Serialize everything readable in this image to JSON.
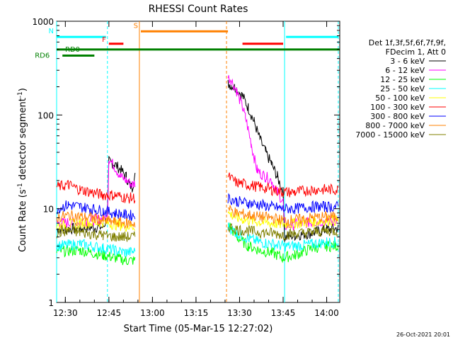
{
  "chart_data": {
    "type": "line",
    "title": "RHESSI Count Rates",
    "xlabel": "Start Time (05-Mar-15 12:27:02)",
    "ylabel_main": "Count Rate (s",
    "ylabel_sup1": "-1",
    "ylabel_mid": " detector segment",
    "ylabel_sup2": "-1",
    "ylabel_end": ")",
    "x_unit": "minutes after 12:27:02",
    "xlim": [
      0,
      97.5
    ],
    "yscale": "log",
    "ylim": [
      1,
      1000
    ],
    "x_ticks": [
      {
        "label": "12:30",
        "value": 3
      },
      {
        "label": "12:45",
        "value": 18
      },
      {
        "label": "13:00",
        "value": 33
      },
      {
        "label": "13:15",
        "value": 48
      },
      {
        "label": "13:30",
        "value": 63
      },
      {
        "label": "13:45",
        "value": 78
      },
      {
        "label": "14:00",
        "value": 93
      }
    ],
    "y_ticks": [
      {
        "label": "1",
        "value": 1
      },
      {
        "label": "10",
        "value": 10
      },
      {
        "label": "100",
        "value": 100
      },
      {
        "label": "1000",
        "value": 1000
      }
    ],
    "grid": false,
    "legend_header": [
      "Det 1f,3f,5f,6f,7f,9f,",
      "FDecim 1, Att 0"
    ],
    "legend_position": "right",
    "series": [
      {
        "name": "3 - 6 keV",
        "color": "#000000",
        "points": [
          [
            0,
            6.0
          ],
          [
            8,
            6.2
          ],
          [
            16,
            6.4
          ],
          [
            17.5,
            8
          ],
          [
            18,
            32
          ],
          [
            20,
            30
          ],
          [
            22,
            26
          ],
          [
            24,
            22
          ],
          [
            25,
            18
          ],
          [
            26,
            17
          ],
          [
            27,
            22
          ],
          [
            59,
            215
          ],
          [
            60,
            210
          ],
          [
            62,
            190
          ],
          [
            64,
            160
          ],
          [
            66,
            120
          ],
          [
            68,
            85
          ],
          [
            70,
            55
          ],
          [
            72,
            40
          ],
          [
            74,
            30
          ],
          [
            76,
            22
          ],
          [
            78,
            15
          ],
          [
            78.5,
            5.0
          ],
          [
            82,
            5.2
          ],
          [
            88,
            5.5
          ],
          [
            93,
            6.0
          ],
          [
            97,
            6.2
          ]
        ]
      },
      {
        "name": "6 - 12 keV",
        "color": "#ff00ff",
        "points": [
          [
            0,
            7.0
          ],
          [
            8,
            7.2
          ],
          [
            17.5,
            8
          ],
          [
            18,
            34
          ],
          [
            20,
            28
          ],
          [
            22,
            22
          ],
          [
            24,
            20
          ],
          [
            26,
            18
          ],
          [
            27,
            19
          ],
          [
            59,
            250
          ],
          [
            60,
            240
          ],
          [
            62,
            180
          ],
          [
            64,
            120
          ],
          [
            65,
            95
          ],
          [
            66,
            70
          ],
          [
            67,
            50
          ],
          [
            68,
            35
          ],
          [
            69,
            26
          ],
          [
            70,
            24
          ],
          [
            72,
            22
          ],
          [
            74,
            20
          ],
          [
            76,
            15
          ],
          [
            78,
            12
          ],
          [
            78.5,
            6.5
          ],
          [
            85,
            7
          ],
          [
            93,
            7.5
          ],
          [
            97,
            7.5
          ]
        ]
      },
      {
        "name": "12 - 25 keV",
        "color": "#00ff00",
        "points": [
          [
            0,
            3.5
          ],
          [
            8,
            3.6
          ],
          [
            16,
            3.2
          ],
          [
            20,
            3.0
          ],
          [
            24,
            2.8
          ],
          [
            27,
            2.8
          ],
          [
            59,
            7.0
          ],
          [
            62,
            5.0
          ],
          [
            66,
            4.0
          ],
          [
            70,
            3.6
          ],
          [
            74,
            3.4
          ],
          [
            78,
            3.0
          ],
          [
            82,
            3.2
          ],
          [
            88,
            3.8
          ],
          [
            93,
            4.0
          ],
          [
            97,
            4.0
          ]
        ]
      },
      {
        "name": "25 - 50 keV",
        "color": "#00ffff",
        "points": [
          [
            0,
            4.0
          ],
          [
            8,
            4.2
          ],
          [
            16,
            3.8
          ],
          [
            20,
            3.6
          ],
          [
            24,
            3.4
          ],
          [
            27,
            3.5
          ],
          [
            59,
            6.5
          ],
          [
            62,
            5.5
          ],
          [
            66,
            4.8
          ],
          [
            70,
            4.4
          ],
          [
            74,
            4.2
          ],
          [
            78,
            4.0
          ],
          [
            82,
            4.0
          ],
          [
            88,
            4.2
          ],
          [
            93,
            4.4
          ],
          [
            97,
            4.4
          ]
        ]
      },
      {
        "name": "50 - 100 keV",
        "color": "#ffff00",
        "points": [
          [
            0,
            6.5
          ],
          [
            8,
            7.0
          ],
          [
            16,
            7.2
          ],
          [
            20,
            6.8
          ],
          [
            24,
            6.5
          ],
          [
            27,
            6.5
          ],
          [
            59,
            9.0
          ],
          [
            62,
            8.0
          ],
          [
            66,
            7.5
          ],
          [
            70,
            7.2
          ],
          [
            74,
            7.0
          ],
          [
            78,
            6.8
          ],
          [
            82,
            7.0
          ],
          [
            88,
            7.2
          ],
          [
            93,
            7.5
          ],
          [
            97,
            7.5
          ]
        ]
      },
      {
        "name": "100 - 300 keV",
        "color": "#ff0000",
        "points": [
          [
            0,
            17
          ],
          [
            4,
            18
          ],
          [
            8,
            16
          ],
          [
            12,
            15
          ],
          [
            16,
            14
          ],
          [
            20,
            14
          ],
          [
            24,
            13
          ],
          [
            27,
            13
          ],
          [
            59,
            22
          ],
          [
            62,
            19
          ],
          [
            66,
            18
          ],
          [
            70,
            17
          ],
          [
            74,
            16
          ],
          [
            78,
            15
          ],
          [
            82,
            15
          ],
          [
            88,
            16
          ],
          [
            93,
            16
          ],
          [
            97,
            16
          ]
        ]
      },
      {
        "name": "300 - 800 keV",
        "color": "#0000ff",
        "points": [
          [
            0,
            10
          ],
          [
            4,
            11
          ],
          [
            8,
            10.5
          ],
          [
            12,
            10
          ],
          [
            16,
            9.5
          ],
          [
            20,
            9
          ],
          [
            24,
            8.5
          ],
          [
            27,
            8.5
          ],
          [
            59,
            13
          ],
          [
            62,
            12
          ],
          [
            66,
            11.5
          ],
          [
            70,
            11
          ],
          [
            74,
            10.5
          ],
          [
            78,
            10
          ],
          [
            82,
            10
          ],
          [
            88,
            10.5
          ],
          [
            93,
            10.5
          ],
          [
            97,
            10.5
          ]
        ]
      },
      {
        "name": "800 - 7000 keV",
        "color": "#ff8000",
        "points": [
          [
            0,
            8.0
          ],
          [
            4,
            8.5
          ],
          [
            8,
            8.2
          ],
          [
            12,
            8.0
          ],
          [
            16,
            7.5
          ],
          [
            20,
            7.2
          ],
          [
            24,
            7.0
          ],
          [
            27,
            7.0
          ],
          [
            59,
            10
          ],
          [
            62,
            9
          ],
          [
            66,
            8.6
          ],
          [
            70,
            8.2
          ],
          [
            74,
            8.0
          ],
          [
            78,
            7.5
          ],
          [
            82,
            7.6
          ],
          [
            88,
            8.0
          ],
          [
            93,
            8.2
          ],
          [
            97,
            8.2
          ]
        ]
      },
      {
        "name": "7000 - 15000 keV",
        "color": "#808000",
        "points": [
          [
            0,
            5.5
          ],
          [
            4,
            5.8
          ],
          [
            8,
            5.6
          ],
          [
            12,
            5.4
          ],
          [
            16,
            5.2
          ],
          [
            20,
            5.0
          ],
          [
            24,
            5.0
          ],
          [
            27,
            5.0
          ],
          [
            59,
            6.5
          ],
          [
            62,
            6.0
          ],
          [
            66,
            5.8
          ],
          [
            70,
            5.6
          ],
          [
            74,
            5.5
          ],
          [
            78,
            5.3
          ],
          [
            82,
            5.4
          ],
          [
            88,
            5.6
          ],
          [
            93,
            5.8
          ],
          [
            97,
            5.8
          ]
        ]
      }
    ],
    "attenuator_bars": [
      {
        "label": "RD0",
        "color": "#008000",
        "x_range": [
          0,
          97.5
        ],
        "y": 500
      },
      {
        "label": "RD6",
        "color": "#008000",
        "x_range": [
          2,
          13
        ],
        "y": 430
      },
      {
        "label": "N",
        "color": "#00ffff",
        "x_range": [
          0,
          17
        ],
        "y": 680
      },
      {
        "label": "",
        "color": "#00ffff",
        "x_range": [
          79,
          97
        ],
        "y": 680
      },
      {
        "label": "F",
        "color": "#ff0000",
        "x_range": [
          18,
          23
        ],
        "y": 575
      },
      {
        "label": "",
        "color": "#ff0000",
        "x_range": [
          64,
          78
        ],
        "y": 575
      },
      {
        "label": "S",
        "color": "#ff8000",
        "x_range": [
          29,
          59
        ],
        "y": 780
      }
    ],
    "vertical_markers": [
      {
        "x": 0,
        "color": "#00ffff",
        "style": "solid"
      },
      {
        "x": 17.5,
        "color": "#00ffff",
        "style": "dashed"
      },
      {
        "x": 28.5,
        "color": "#ff8000",
        "style": "solid"
      },
      {
        "x": 58.5,
        "color": "#ff8000",
        "style": "dashed"
      },
      {
        "x": 78.5,
        "color": "#00ffff",
        "style": "solid"
      },
      {
        "x": 97,
        "color": "#00ffff",
        "style": "dashed"
      }
    ],
    "footer_timestamp": "26-Oct-2021 20:01"
  }
}
